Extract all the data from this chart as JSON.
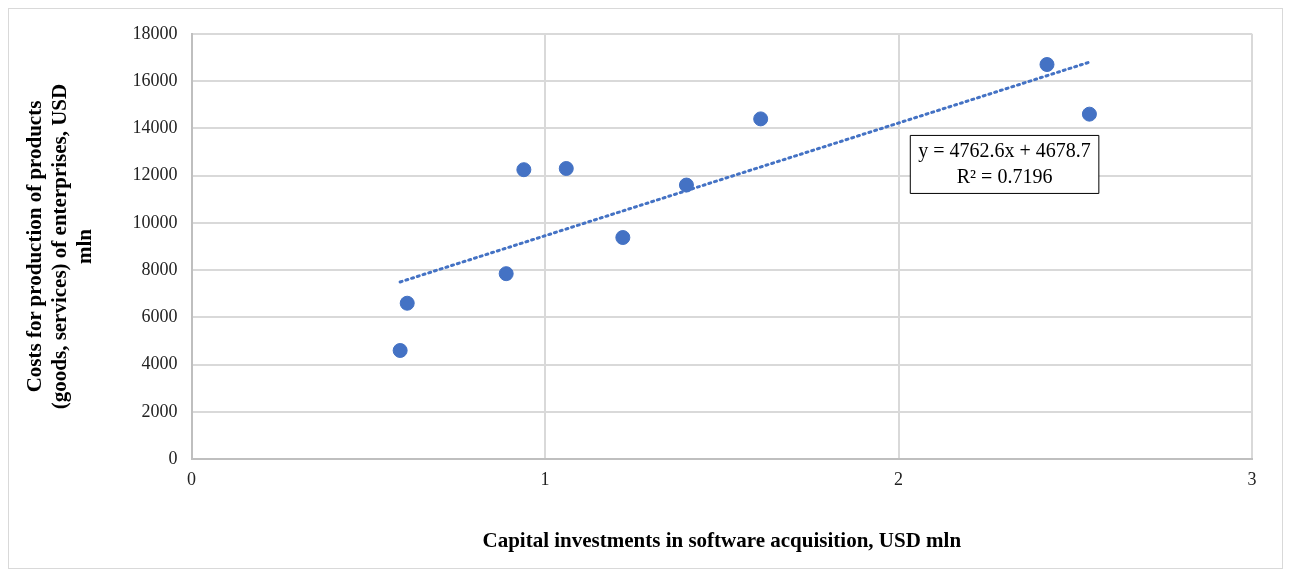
{
  "chart_data": {
    "type": "scatter",
    "xlabel": "Capital investments in software acquisition, USD mln",
    "ylabel": "Costs for production of products (goods, services) of enterprises, USD mln",
    "xlim": [
      0,
      3
    ],
    "xticks": [
      0,
      1,
      2,
      3
    ],
    "ylim": [
      0,
      18000
    ],
    "yticks": [
      0,
      2000,
      4000,
      6000,
      8000,
      10000,
      12000,
      14000,
      16000,
      18000
    ],
    "grid": true,
    "legend": false,
    "series": [
      {
        "color": "#4472c4",
        "marker": "circle",
        "x": [
          0.59,
          0.61,
          0.89,
          0.94,
          1.06,
          1.22,
          1.4,
          1.61,
          2.42,
          2.54
        ],
        "values": [
          4600,
          6600,
          7850,
          12250,
          12300,
          9380,
          11600,
          14400,
          16700,
          14600
        ]
      },
      {
        "type": "line",
        "color": "#4472c4",
        "marker": "none",
        "line_style": "dotted",
        "x": [
          0.59,
          2.54
        ],
        "values": [
          7500,
          16800
        ]
      }
    ],
    "annotations": [
      "y = 4762.6x + 4678.7",
      "R² = 0.7196"
    ]
  }
}
